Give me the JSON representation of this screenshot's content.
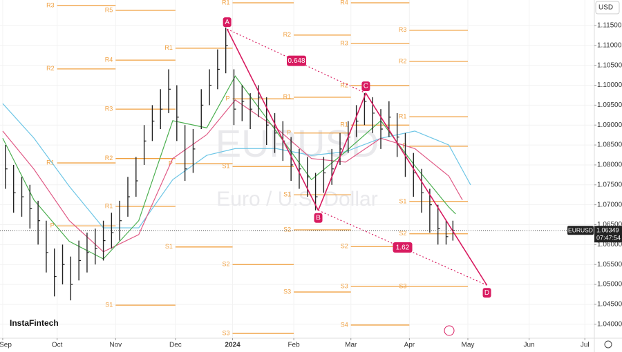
{
  "currency": "USD",
  "logo": "InstaFintech",
  "chart_data": {
    "type": "ohlc",
    "symbol": "EURUSD",
    "description": "Euro / U.S. Dollar",
    "color": "#222222",
    "grid": true,
    "x": [
      0.2,
      0.8,
      1.4,
      2.0,
      2.6,
      3.2,
      3.8,
      4.4,
      5.0,
      5.6,
      6.2,
      6.8,
      7.4,
      8.0,
      8.6,
      9.2,
      9.8,
      10.4,
      11.0,
      11.6,
      12.2,
      12.8,
      13.4,
      14.0,
      14.6,
      15.2,
      15.8,
      16.4,
      17.0,
      17.6,
      18.2,
      18.8,
      19.4,
      20.0,
      20.6,
      21.2,
      21.8,
      22.4,
      23.0,
      23.6,
      24.2,
      24.8,
      25.4,
      26.0,
      26.6,
      27.2,
      27.8,
      28.4,
      29.0,
      29.6,
      30.2,
      30.8,
      31.4,
      32.0,
      32.6,
      33.1
    ],
    "high": [
      1.085,
      1.08,
      1.077,
      1.075,
      1.071,
      1.066,
      1.059,
      1.06,
      1.057,
      1.061,
      1.063,
      1.064,
      1.066,
      1.068,
      1.071,
      1.077,
      1.082,
      1.09,
      1.095,
      1.099,
      1.104,
      1.1,
      1.09,
      1.089,
      1.099,
      1.104,
      1.109,
      1.1145,
      1.104,
      1.1,
      1.098,
      1.1,
      1.097,
      1.093,
      1.091,
      1.087,
      1.084,
      1.082,
      1.078,
      1.082,
      1.084,
      1.088,
      1.091,
      1.095,
      1.098,
      1.097,
      1.094,
      1.096,
      1.093,
      1.088,
      1.083,
      1.079,
      1.074,
      1.07,
      1.066,
      1.066
    ],
    "low": [
      1.074,
      1.068,
      1.067,
      1.064,
      1.06,
      1.053,
      1.047,
      1.05,
      1.046,
      1.051,
      1.053,
      1.055,
      1.056,
      1.059,
      1.061,
      1.067,
      1.072,
      1.08,
      1.086,
      1.089,
      1.093,
      1.086,
      1.076,
      1.078,
      1.089,
      1.095,
      1.099,
      1.103,
      1.09,
      1.091,
      1.089,
      1.092,
      1.085,
      1.083,
      1.081,
      1.076,
      1.074,
      1.072,
      1.0686,
      1.073,
      1.075,
      1.08,
      1.083,
      1.087,
      1.09,
      1.088,
      1.084,
      1.087,
      1.082,
      1.077,
      1.072,
      1.068,
      1.063,
      1.06,
      1.06,
      1.061
    ],
    "close": [
      1.079,
      1.073,
      1.072,
      1.069,
      1.066,
      1.058,
      1.052,
      1.055,
      1.05,
      1.056,
      1.058,
      1.059,
      1.061,
      1.063,
      1.066,
      1.072,
      1.076,
      1.086,
      1.091,
      1.094,
      1.099,
      1.092,
      1.079,
      1.084,
      1.095,
      1.1,
      1.104,
      1.11,
      1.094,
      1.096,
      1.094,
      1.097,
      1.09,
      1.088,
      1.086,
      1.08,
      1.079,
      1.077,
      1.072,
      1.078,
      1.079,
      1.084,
      1.087,
      1.091,
      1.096,
      1.093,
      1.089,
      1.092,
      1.087,
      1.082,
      1.078,
      1.073,
      1.07,
      1.064,
      1.062,
      1.0635
    ],
    "xlim": [
      -0.2,
      43.5
    ],
    "xticks": [
      {
        "value": 0,
        "label": "Sep"
      },
      {
        "value": 4.0,
        "label": "Oct"
      },
      {
        "value": 8.3,
        "label": "Nov"
      },
      {
        "value": 12.7,
        "label": "Dec"
      },
      {
        "value": 16.9,
        "label": "2024"
      },
      {
        "value": 21.4,
        "label": "Feb"
      },
      {
        "value": 25.6,
        "label": "Mar"
      },
      {
        "value": 29.9,
        "label": "Apr"
      },
      {
        "value": 34.2,
        "label": "May"
      },
      {
        "value": 38.7,
        "label": "Jun"
      },
      {
        "value": 42.8,
        "label": "Jul"
      }
    ],
    "ylim": [
      1.0365,
      1.1214
    ],
    "yticks": [
      {
        "value": 1.04,
        "label": "1.04000"
      },
      {
        "value": 1.045,
        "label": "1.04500"
      },
      {
        "value": 1.05,
        "label": "1.05000"
      },
      {
        "value": 1.055,
        "label": "1.05500"
      },
      {
        "value": 1.06,
        "label": "1.06000"
      },
      {
        "value": 1.065,
        "label": "1.06500"
      },
      {
        "value": 1.07,
        "label": "1.07000"
      },
      {
        "value": 1.075,
        "label": "1.07500"
      },
      {
        "value": 1.08,
        "label": "1.08000"
      },
      {
        "value": 1.085,
        "label": "1.08500"
      },
      {
        "value": 1.09,
        "label": "1.09000"
      },
      {
        "value": 1.095,
        "label": "1.09500"
      },
      {
        "value": 1.1,
        "label": "1.10000"
      },
      {
        "value": 1.105,
        "label": "1.10500"
      },
      {
        "value": 1.11,
        "label": "1.11000"
      },
      {
        "value": 1.115,
        "label": "1.11500"
      }
    ],
    "indicators": [
      {
        "color": "#6ec6e6",
        "x": [
          0,
          2.3,
          4.9,
          7.4,
          10,
          12.5,
          15,
          17.1,
          20.1,
          22.7,
          25.2,
          27.8,
          30.3,
          32.8,
          34.4
        ],
        "values": [
          1.0954,
          1.0867,
          1.0746,
          1.0642,
          1.0642,
          1.0763,
          1.0824,
          1.0841,
          1.0841,
          1.0824,
          1.0833,
          1.0867,
          1.0885,
          1.085,
          1.075
        ]
      },
      {
        "color": "#e05a86",
        "x": [
          0,
          2.3,
          4.9,
          7.4,
          10,
          12.5,
          15,
          17.1,
          20.1,
          22.7,
          25.2,
          27.8,
          30.3,
          32.8,
          33.8
        ],
        "values": [
          1.0885,
          1.0789,
          1.066,
          1.0582,
          1.0625,
          1.0816,
          1.0876,
          1.0963,
          1.0893,
          1.0816,
          1.0807,
          1.0867,
          1.0841,
          1.0772,
          1.0712
        ]
      },
      {
        "color": "#4caf50",
        "x": [
          0,
          2.3,
          4.9,
          7.4,
          10,
          12.5,
          15,
          17.1,
          20.1,
          22.7,
          25.2,
          27.8,
          30.3,
          32.8,
          33.3
        ],
        "values": [
          1.0867,
          1.0712,
          1.0608,
          1.0564,
          1.066,
          1.0911,
          1.0893,
          1.1023,
          1.0885,
          1.0763,
          1.0833,
          1.0911,
          1.0798,
          1.0694,
          1.0677
        ]
      }
    ],
    "pivot_color": "#f0a040",
    "pivots": [
      {
        "label": "R3",
        "value": 1.12,
        "x0": 4.0,
        "x1": 8.3
      },
      {
        "label": "R2",
        "value": 1.1041,
        "x0": 4.0,
        "x1": 8.3
      },
      {
        "label": "R1",
        "value": 1.0805,
        "x0": 4.0,
        "x1": 8.3
      },
      {
        "label": "P",
        "value": 1.0647,
        "x0": 4.0,
        "x1": 8.3
      },
      {
        "label": "R5",
        "value": 1.1188,
        "x0": 8.3,
        "x1": 12.7
      },
      {
        "label": "R4",
        "value": 1.1063,
        "x0": 8.3,
        "x1": 12.7
      },
      {
        "label": "R3",
        "value": 1.094,
        "x0": 8.3,
        "x1": 12.7
      },
      {
        "label": "R2",
        "value": 1.0816,
        "x0": 8.3,
        "x1": 12.7
      },
      {
        "label": "R1",
        "value": 1.0696,
        "x0": 8.3,
        "x1": 12.7
      },
      {
        "label": "S1",
        "value": 1.0448,
        "x0": 8.3,
        "x1": 12.7
      },
      {
        "label": "R1",
        "value": 1.1093,
        "x0": 12.7,
        "x1": 16.9
      },
      {
        "label": "P",
        "value": 1.0803,
        "x0": 12.7,
        "x1": 16.9
      },
      {
        "label": "S1",
        "value": 1.0594,
        "x0": 12.7,
        "x1": 16.9
      },
      {
        "label": "R1",
        "value": 1.1207,
        "x0": 16.9,
        "x1": 21.4
      },
      {
        "label": "P",
        "value": 1.0966,
        "x0": 16.9,
        "x1": 21.4
      },
      {
        "label": "S1",
        "value": 1.0796,
        "x0": 16.9,
        "x1": 21.4
      },
      {
        "label": "S2",
        "value": 1.055,
        "x0": 16.9,
        "x1": 21.4
      },
      {
        "label": "S3",
        "value": 1.0377,
        "x0": 16.9,
        "x1": 21.4
      },
      {
        "label": "R2",
        "value": 1.1126,
        "x0": 21.4,
        "x1": 25.6
      },
      {
        "label": "R1",
        "value": 1.097,
        "x0": 21.4,
        "x1": 25.6
      },
      {
        "label": "P",
        "value": 1.088,
        "x0": 21.4,
        "x1": 25.6
      },
      {
        "label": "S1",
        "value": 1.0725,
        "x0": 21.4,
        "x1": 25.6
      },
      {
        "label": "S2",
        "value": 1.0637,
        "x0": 21.4,
        "x1": 25.6
      },
      {
        "label": "S3",
        "value": 1.0481,
        "x0": 21.4,
        "x1": 25.6
      },
      {
        "label": "R4",
        "value": 1.1207,
        "x0": 25.6,
        "x1": 29.9
      },
      {
        "label": "R3",
        "value": 1.1105,
        "x0": 25.6,
        "x1": 29.9
      },
      {
        "label": "R2",
        "value": 1.0999,
        "x0": 25.6,
        "x1": 29.9
      },
      {
        "label": "R1",
        "value": 1.09,
        "x0": 25.6,
        "x1": 29.9
      },
      {
        "label": "S2",
        "value": 1.0595,
        "x0": 25.6,
        "x1": 29.9
      },
      {
        "label": "S3",
        "value": 1.0495,
        "x0": 25.6,
        "x1": 29.9
      },
      {
        "label": "S4",
        "value": 1.0398,
        "x0": 25.6,
        "x1": 29.9
      },
      {
        "label": "R3",
        "value": 1.1138,
        "x0": 29.9,
        "x1": 34.2
      },
      {
        "label": "R2",
        "value": 1.106,
        "x0": 29.9,
        "x1": 34.2
      },
      {
        "label": "R1",
        "value": 1.0921,
        "x0": 29.9,
        "x1": 34.2
      },
      {
        "label": "P",
        "value": 1.0847,
        "x0": 29.9,
        "x1": 34.2
      },
      {
        "label": "S1",
        "value": 1.0708,
        "x0": 29.9,
        "x1": 34.2
      },
      {
        "label": "S2",
        "value": 1.0627,
        "x0": 29.9,
        "x1": 34.2
      },
      {
        "label": "S3",
        "value": 1.0495,
        "x0": 29.9,
        "x1": 34.2
      }
    ],
    "pattern": {
      "color": "#d81b60",
      "points": [
        {
          "label": "A",
          "x": 16.5,
          "value": 1.1141
        },
        {
          "label": "B",
          "x": 23.2,
          "value": 1.0686
        },
        {
          "label": "C",
          "x": 26.7,
          "value": 1.098
        },
        {
          "label": "D",
          "x": 35.6,
          "value": 1.0498
        }
      ],
      "ratios": [
        0.648,
        1.62
      ]
    },
    "last_price": {
      "name": "EURUSD",
      "value": 1.06349,
      "time": "07:47:54"
    }
  }
}
